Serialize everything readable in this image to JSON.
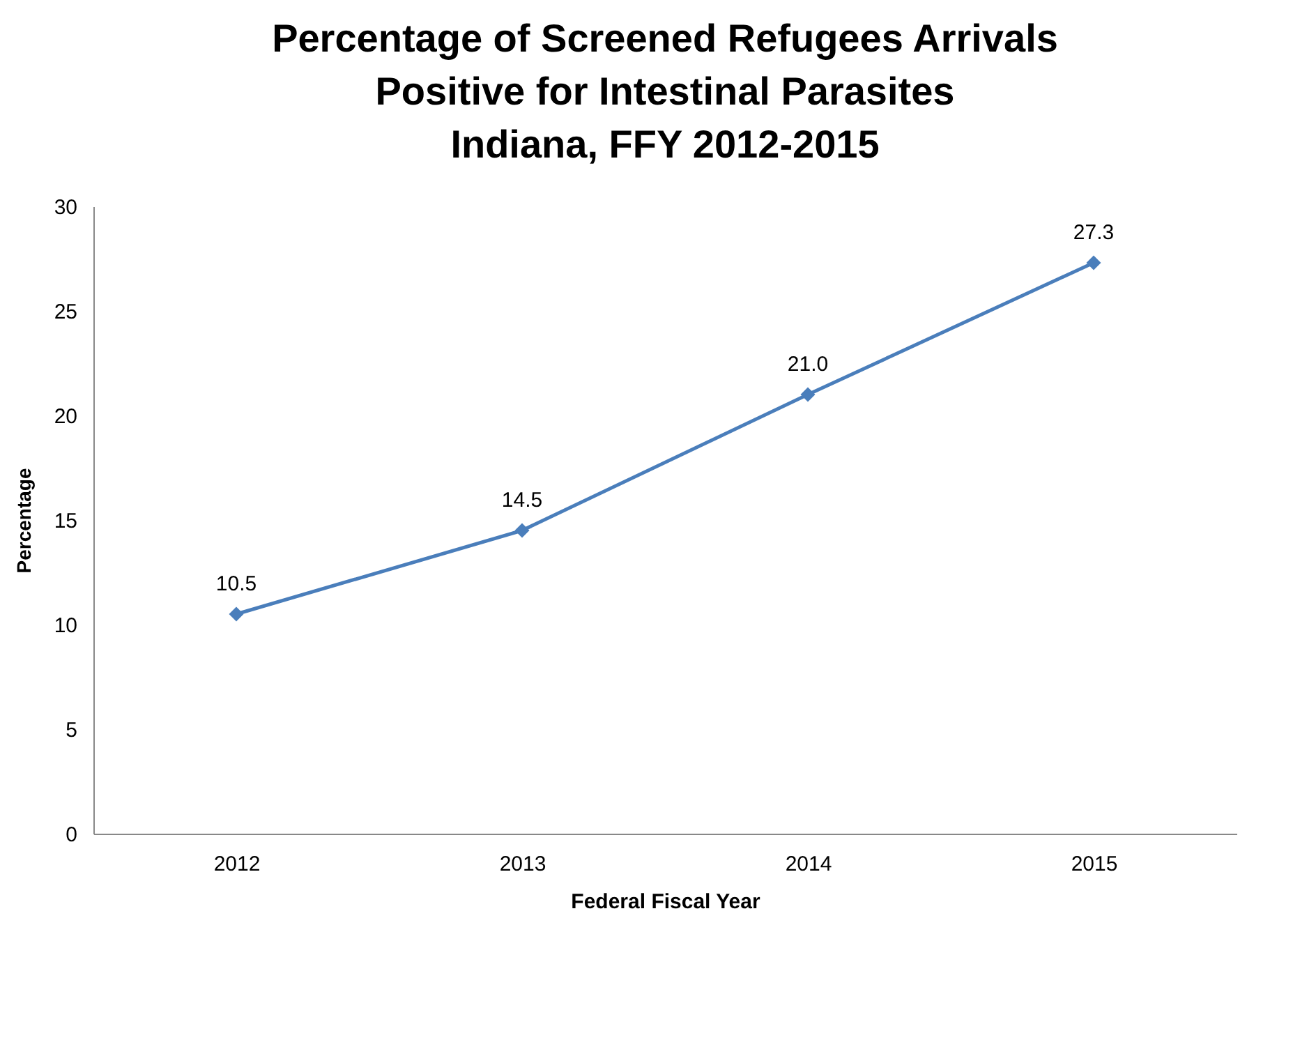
{
  "chart_data": {
    "type": "line",
    "title": "Percentage of Screened Refugees Arrivals\nPositive for Intestinal Parasites\nIndiana, FFY 2012-2015",
    "xlabel": "Federal Fiscal Year",
    "ylabel": "Percentage",
    "categories": [
      "2012",
      "2013",
      "2014",
      "2015"
    ],
    "series": [
      {
        "color": "#4a7ebb",
        "values": [
          10.5,
          14.5,
          21.0,
          27.3
        ],
        "value_labels": [
          "10.5",
          "14.5",
          "21.0",
          "27.3"
        ]
      }
    ],
    "ylim": [
      0,
      30
    ],
    "yticks": [
      0,
      5,
      10,
      15,
      20,
      25,
      30
    ],
    "grid": false,
    "marker": "diamond",
    "line_style": "solid"
  }
}
